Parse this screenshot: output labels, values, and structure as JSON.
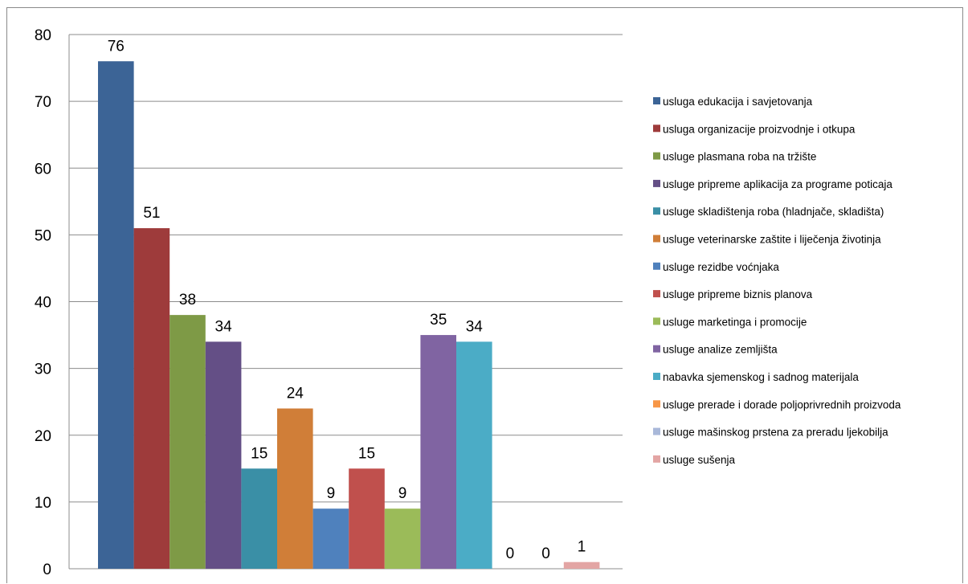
{
  "chart_data": {
    "type": "bar",
    "ylim": [
      0,
      80
    ],
    "yticks": [
      0,
      10,
      20,
      30,
      40,
      50,
      60,
      70,
      80
    ],
    "grid": true,
    "legend_position": "right",
    "series": [
      {
        "name": "usluga edukacija i savjetovanja",
        "value": 76,
        "color": "#3C6496"
      },
      {
        "name": "usluga organizacije proizvodnje i otkupa",
        "value": 51,
        "color": "#9E3B3B"
      },
      {
        "name": "usluge plasmana roba na tržište",
        "value": 38,
        "color": "#7E9A46"
      },
      {
        "name": "usluge pripreme aplikacija za programe poticaja",
        "value": 34,
        "color": "#644F86"
      },
      {
        "name": "usluge skladištenja roba (hladnjače, skladišta)",
        "value": 15,
        "color": "#3A8FA6"
      },
      {
        "name": "usluge veterinarske zaštite i liječenja životinja",
        "value": 24,
        "color": "#D07E38"
      },
      {
        "name": "usluge rezidbe voćnjaka",
        "value": 9,
        "color": "#4F81BD"
      },
      {
        "name": "usluge pripreme biznis planova",
        "value": 15,
        "color": "#C0504D"
      },
      {
        "name": "usluge marketinga i promocije",
        "value": 9,
        "color": "#9BBB59"
      },
      {
        "name": "usluge analize zemljišta",
        "value": 35,
        "color": "#8064A2"
      },
      {
        "name": "nabavka sjemenskog i sadnog materijala",
        "value": 34,
        "color": "#4BACC6"
      },
      {
        "name": "usluge prerade i dorade poljoprivrednih proizvoda",
        "value": 0,
        "color": "#F79646"
      },
      {
        "name": "usluge mašinskog prstena za preradu ljekobilja",
        "value": 0,
        "color": "#A9B8D9"
      },
      {
        "name": "usluge sušenja",
        "value": 1,
        "color": "#E3A5A4"
      }
    ]
  }
}
